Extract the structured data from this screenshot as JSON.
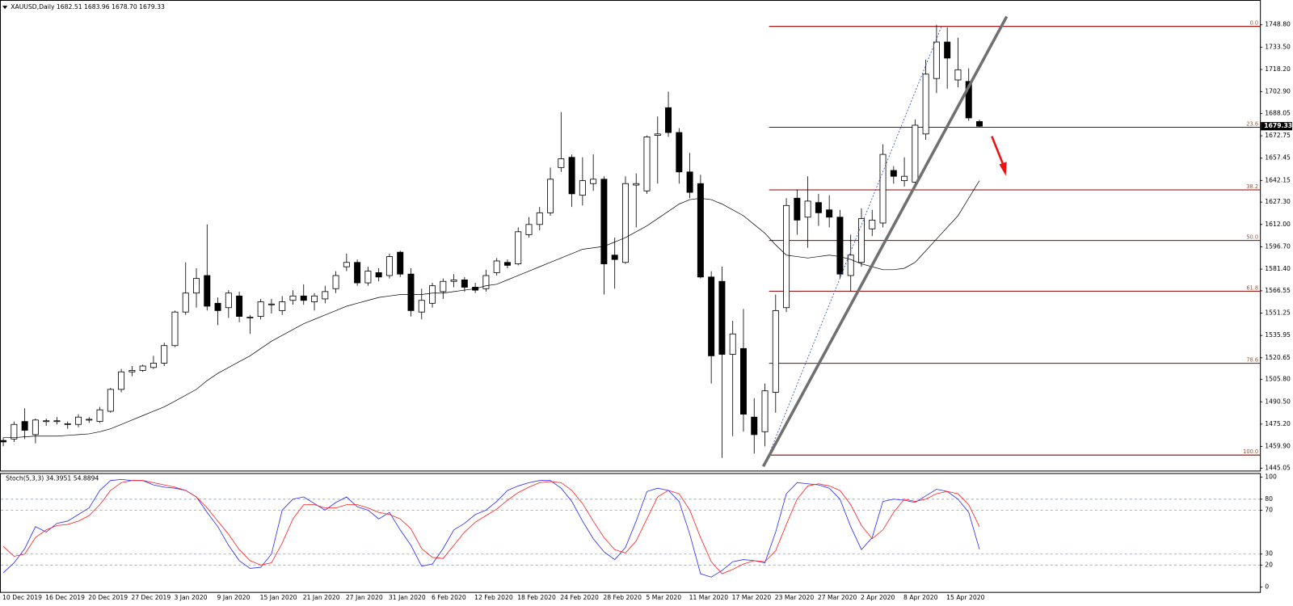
{
  "chart_data": {
    "type": "candlestick",
    "header": "XAUUSD,Daily  1682.51 1683.96 1678.70 1679.33",
    "up_color": "#ffffff",
    "down_color": "#000000",
    "categories": [
      "10 Dec 2019",
      null,
      null,
      null,
      "16 Dec 2019",
      null,
      null,
      null,
      "20 Dec 2019",
      null,
      null,
      null,
      "27 Dec 2019",
      null,
      null,
      null,
      "3 Jan 2020",
      null,
      null,
      null,
      "9 Jan 2020",
      null,
      null,
      null,
      "15 Jan 2020",
      null,
      null,
      null,
      "21 Jan 2020",
      null,
      null,
      null,
      "27 Jan 2020",
      null,
      null,
      null,
      "31 Jan 2020",
      null,
      null,
      null,
      "6 Feb 2020",
      null,
      null,
      null,
      "12 Feb 2020",
      null,
      null,
      null,
      "18 Feb 2020",
      null,
      null,
      null,
      "24 Feb 2020",
      null,
      null,
      null,
      "28 Feb 2020",
      null,
      null,
      null,
      "5 Mar 2020",
      null,
      null,
      null,
      "11 Mar 2020",
      null,
      null,
      null,
      "17 Mar 2020",
      null,
      null,
      null,
      "23 Mar 2020",
      null,
      null,
      null,
      "27 Mar 2020",
      null,
      null,
      null,
      "2 Apr 2020",
      null,
      null,
      null,
      "8 Apr 2020",
      null,
      null,
      null,
      "15 Apr 2020",
      null,
      null,
      null
    ],
    "open": [
      1464,
      1465,
      1477,
      1468,
      1477,
      1477,
      1475,
      1475,
      1478,
      1477,
      1484,
      1499,
      1511,
      1512,
      1514,
      1517,
      1529,
      1552,
      1565,
      1577,
      1558,
      1555,
      1563,
      1548,
      1549,
      1557,
      1553,
      1560,
      1563,
      1559,
      1561,
      1568,
      1583,
      1586,
      1572,
      1579,
      1577,
      1593,
      1578,
      1552,
      1558,
      1566,
      1573,
      1574,
      1569,
      1568,
      1579,
      1586,
      1585,
      1605,
      1612,
      1620,
      1651,
      1658,
      1632,
      1640,
      1643,
      1591,
      1586,
      1639,
      1635,
      1673,
      1692,
      1675,
      1648,
      1640,
      1576,
      1573,
      1523,
      1527,
      1480,
      1470,
      1497,
      1555,
      1630,
      1617,
      1627,
      1622,
      1617,
      1577,
      1586,
      1609,
      1613,
      1649,
      1642,
      1641,
      1674,
      1712,
      1737,
      1711,
      1710,
      1682.51
    ],
    "high": [
      1466,
      1477,
      1486,
      1479,
      1479,
      1480,
      1477,
      1482,
      1480,
      1487,
      1500,
      1513,
      1515,
      1516,
      1522,
      1531,
      1553,
      1586,
      1582,
      1612,
      1562,
      1567,
      1566,
      1550,
      1561,
      1561,
      1563,
      1567,
      1571,
      1565,
      1570,
      1580,
      1592,
      1588,
      1583,
      1582,
      1592,
      1594,
      1582,
      1568,
      1572,
      1575,
      1578,
      1576,
      1572,
      1581,
      1589,
      1588,
      1610,
      1617,
      1624,
      1651,
      1689,
      1660,
      1658,
      1660,
      1645,
      1603,
      1645,
      1647,
      1673,
      1686,
      1703,
      1678,
      1661,
      1646,
      1580,
      1583,
      1546,
      1554,
      1493,
      1503,
      1564,
      1630,
      1636,
      1645,
      1633,
      1632,
      1622,
      1605,
      1623,
      1622,
      1667,
      1652,
      1658,
      1684,
      1725,
      1748.8,
      1747,
      1740,
      1719,
      1683.96
    ],
    "low": [
      1460,
      1463,
      1465,
      1462,
      1474,
      1475,
      1472,
      1473,
      1476,
      1476,
      1483,
      1497,
      1508,
      1511,
      1513,
      1515,
      1528,
      1550,
      1555,
      1553,
      1543,
      1548,
      1545,
      1537,
      1547,
      1551,
      1550,
      1557,
      1557,
      1553,
      1558,
      1565,
      1580,
      1570,
      1570,
      1573,
      1575,
      1576,
      1549,
      1547,
      1555,
      1561,
      1569,
      1566,
      1565,
      1566,
      1577,
      1582,
      1584,
      1603,
      1608,
      1618,
      1648,
      1624,
      1625,
      1635,
      1564,
      1568,
      1585,
      1610,
      1633,
      1640,
      1672,
      1640,
      1630,
      1575,
      1503,
      1452,
      1467,
      1470,
      1455,
      1460,
      1483,
      1552,
      1605,
      1596,
      1611,
      1610,
      1575,
      1566,
      1583,
      1604,
      1610,
      1640,
      1638,
      1639,
      1670,
      1702,
      1705,
      1706,
      1683,
      1678.7
    ],
    "close": [
      1463,
      1475,
      1471,
      1478,
      1477.5,
      1477.5,
      1475.5,
      1480,
      1478.5,
      1485,
      1499,
      1511,
      1512,
      1515,
      1517,
      1529,
      1552,
      1565,
      1575,
      1556,
      1553,
      1565,
      1549,
      1548.5,
      1559,
      1557.5,
      1559,
      1563,
      1560,
      1563,
      1566,
      1577,
      1586,
      1572,
      1580,
      1576,
      1590,
      1578,
      1553,
      1560,
      1570,
      1573,
      1574,
      1569,
      1567,
      1577,
      1587,
      1584,
      1607,
      1612,
      1620,
      1643,
      1657,
      1633,
      1642,
      1643,
      1585,
      1588,
      1640,
      1640,
      1672,
      1674,
      1675,
      1648,
      1634,
      1576,
      1522,
      1523,
      1537,
      1482,
      1468,
      1498,
      1553,
      1625,
      1615,
      1628,
      1620,
      1617,
      1578,
      1591,
      1616,
      1615,
      1660,
      1645,
      1645,
      1680,
      1715,
      1737,
      1726,
      1718,
      1685,
      1679.33
    ],
    "ma": {
      "color": "#000000",
      "values": [
        1466,
        1466,
        1466.5,
        1467,
        1467,
        1467,
        1467.5,
        1468,
        1468.5,
        1470,
        1472,
        1475,
        1478,
        1481,
        1484,
        1487,
        1491,
        1495,
        1499,
        1505,
        1510,
        1514,
        1518,
        1522,
        1527,
        1532,
        1536,
        1540,
        1544,
        1547,
        1550,
        1553,
        1556,
        1558,
        1560,
        1562,
        1563,
        1564,
        1564,
        1564,
        1565,
        1565,
        1566,
        1567,
        1568,
        1570,
        1571,
        1574,
        1577,
        1580,
        1583,
        1586,
        1589,
        1592,
        1595,
        1596,
        1597,
        1600,
        1603,
        1607,
        1611,
        1616,
        1621,
        1626,
        1629,
        1630,
        1629,
        1626,
        1622,
        1618,
        1612,
        1606,
        1598,
        1591,
        1590,
        1589,
        1590,
        1591,
        1590,
        1588,
        1585,
        1583,
        1581,
        1581,
        1582,
        1586,
        1594,
        1602,
        1610,
        1618,
        1630,
        1642
      ]
    },
    "ylim": [
      1443.35,
      1764.1
    ],
    "yticks": [
      {
        "value": 1748.8,
        "label": "1748.80"
      },
      {
        "value": 1733.5,
        "label": "1733.50"
      },
      {
        "value": 1718.2,
        "label": "1718.20"
      },
      {
        "value": 1702.9,
        "label": "1702.90"
      },
      {
        "value": 1688.05,
        "label": "1688.05"
      },
      {
        "value": 1672.75,
        "label": "1672.75"
      },
      {
        "value": 1657.45,
        "label": "1657.45"
      },
      {
        "value": 1642.15,
        "label": "1642.15"
      },
      {
        "value": 1627.3,
        "label": "1627.30"
      },
      {
        "value": 1612,
        "label": "1612.00"
      },
      {
        "value": 1596.7,
        "label": "1596.70"
      },
      {
        "value": 1581.4,
        "label": "1581.40"
      },
      {
        "value": 1566.55,
        "label": "1566.55"
      },
      {
        "value": 1551.25,
        "label": "1551.25"
      },
      {
        "value": 1535.95,
        "label": "1535.95"
      },
      {
        "value": 1520.65,
        "label": "1520.65"
      },
      {
        "value": 1505.8,
        "label": "1505.80"
      },
      {
        "value": 1490.5,
        "label": "1490.50"
      },
      {
        "value": 1475.2,
        "label": "1475.20"
      },
      {
        "value": 1459.9,
        "label": "1459.90"
      },
      {
        "value": 1445.05,
        "label": "1445.05"
      }
    ],
    "price_tag": {
      "value": 1679.33,
      "label": "1679.33"
    },
    "fib": {
      "color": "#8b0000",
      "label_color": "#a0522d",
      "levels": [
        {
          "label": "0.0",
          "price": 1747.7
        },
        {
          "label": "23.6",
          "price": 1678.6
        },
        {
          "label": "38.2",
          "price": 1635.7
        },
        {
          "label": "50.0",
          "price": 1601.0
        },
        {
          "label": "61.8",
          "price": 1566.3
        },
        {
          "label": "78.6",
          "price": 1516.9
        },
        {
          "label": "100.0",
          "price": 1454.0
        }
      ]
    },
    "stoch": {
      "title": "Stoch(5,3,3) 34.3951 54.8894",
      "ylim": [
        0,
        100
      ],
      "yticks": [
        100,
        80,
        70,
        30,
        20,
        0
      ],
      "levels": [
        80,
        70,
        30,
        20
      ],
      "level_color": "#7aa6d6",
      "k": {
        "color": "#2a2aff",
        "values": [
          13,
          22,
          35,
          55,
          50,
          58,
          60,
          66,
          72,
          88,
          97,
          98,
          97,
          97,
          93,
          91,
          90,
          88,
          82,
          68,
          55,
          38,
          24,
          17,
          18,
          30,
          70,
          80,
          82,
          76,
          70,
          77,
          82,
          73,
          70,
          62,
          68,
          52,
          38,
          19,
          21,
          35,
          52,
          58,
          66,
          70,
          78,
          88,
          92,
          95,
          97,
          97,
          90,
          78,
          60,
          44,
          32,
          25,
          36,
          60,
          87,
          90,
          88,
          78,
          48,
          12,
          9,
          15,
          23,
          25,
          24,
          22,
          50,
          85,
          95,
          94,
          93,
          90,
          80,
          55,
          34,
          45,
          78,
          80,
          79,
          77,
          83,
          89,
          87,
          80,
          68,
          34.3951
        ]
      },
      "d": {
        "color": "#ff2020",
        "values": [
          37,
          28,
          30,
          45,
          52,
          56,
          57,
          60,
          65,
          75,
          88,
          95,
          97,
          97,
          95,
          93,
          91,
          88,
          82,
          72,
          60,
          48,
          34,
          24,
          20,
          22,
          40,
          62,
          75,
          75,
          72,
          72,
          75,
          75,
          72,
          68,
          66,
          62,
          53,
          35,
          27,
          26,
          38,
          50,
          59,
          65,
          71,
          79,
          86,
          91,
          95,
          96,
          95,
          88,
          76,
          60,
          45,
          34,
          31,
          42,
          62,
          82,
          88,
          85,
          70,
          45,
          23,
          12,
          16,
          21,
          24,
          23,
          33,
          57,
          80,
          92,
          94,
          92,
          88,
          75,
          56,
          44,
          52,
          68,
          80,
          78,
          80,
          85,
          87,
          85,
          75,
          54.8894
        ]
      }
    }
  }
}
